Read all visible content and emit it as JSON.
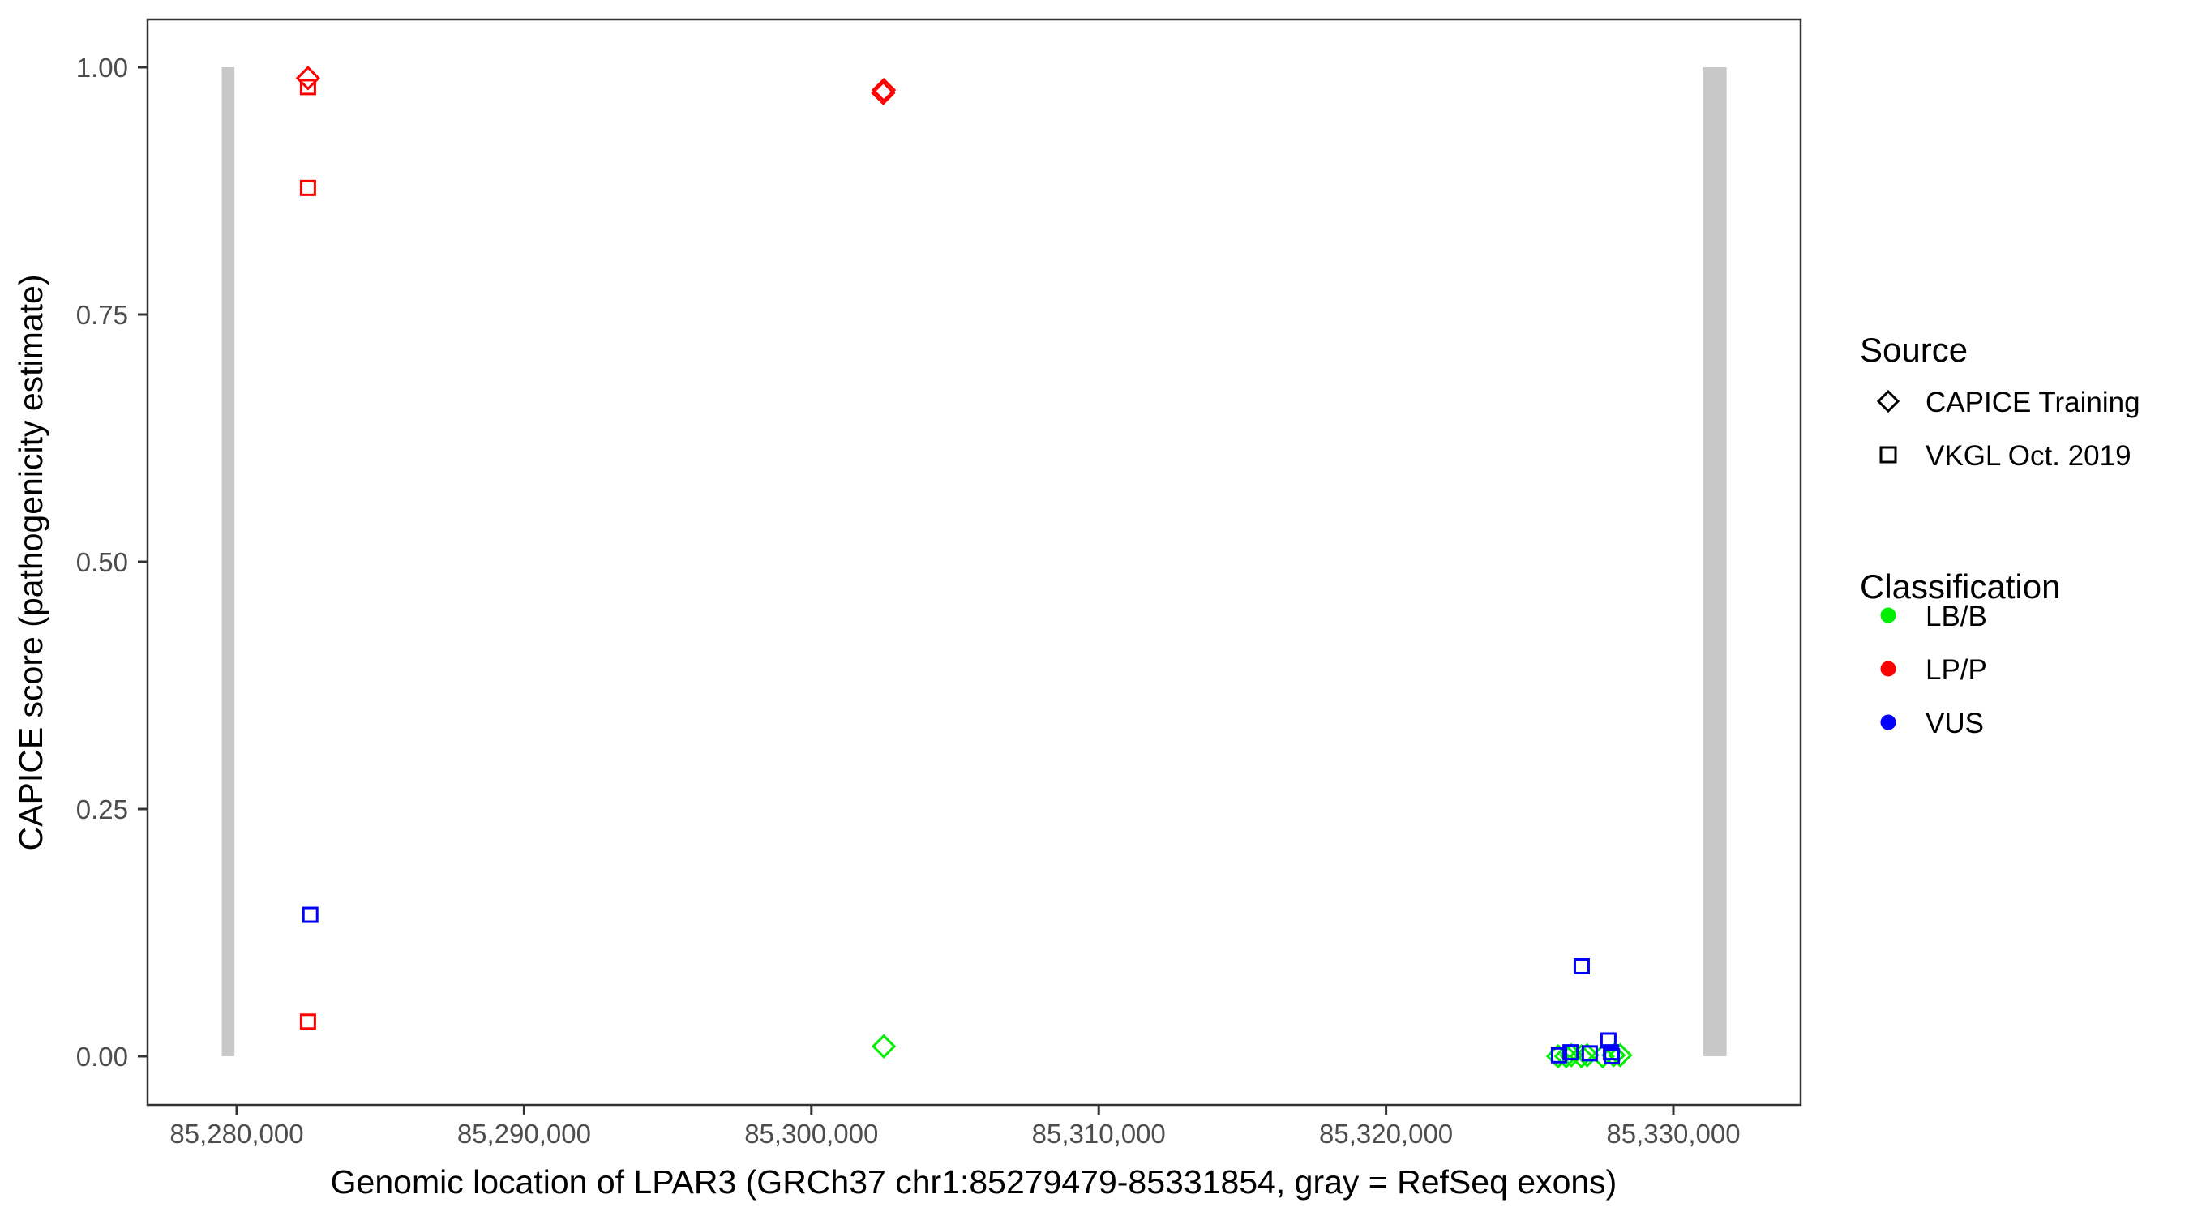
{
  "chart_data": {
    "type": "scatter",
    "title": "",
    "xlabel": "Genomic location of LPAR3 (GRCh37 chr1:85279479-85331854, gray = RefSeq exons)",
    "ylabel": "CAPICE score (pathogenicity estimate)",
    "xlim": [
      85276900,
      85332600
    ],
    "ylim": [
      -0.05,
      1.05
    ],
    "x_ticks": [
      85280000,
      85290000,
      85300000,
      85310000,
      85320000,
      85330000
    ],
    "x_tick_labels": [
      "85,280,000",
      "85,290,000",
      "85,300,000",
      "85,310,000",
      "85,320,000",
      "85,330,000"
    ],
    "y_ticks": [
      0,
      0.25,
      0.5,
      0.75,
      1.0
    ],
    "y_tick_labels": [
      "0.00",
      "0.25",
      "0.50",
      "0.75",
      "1.00"
    ],
    "grid": false,
    "legend_placement": "right",
    "exons": [
      {
        "start": 85279479,
        "end": 85279920
      },
      {
        "start": 85331020,
        "end": 85331854
      }
    ],
    "exon_color": "#c8c8c8",
    "legends": [
      {
        "title": "Source",
        "items": [
          {
            "label": "CAPICE Training",
            "shape": "diamond"
          },
          {
            "label": "VKGL Oct. 2019",
            "shape": "square"
          }
        ]
      },
      {
        "title": "Classification",
        "items": [
          {
            "label": "LB/B",
            "color": "#00ee00"
          },
          {
            "label": "LP/P",
            "color": "#ff0000"
          },
          {
            "label": "VUS",
            "color": "#0000ff"
          }
        ]
      }
    ],
    "points": [
      {
        "x": 85282480,
        "y": 0.989,
        "source": "CAPICE Training",
        "classification": "LP/P"
      },
      {
        "x": 85282480,
        "y": 0.98,
        "source": "VKGL Oct. 2019",
        "classification": "LP/P"
      },
      {
        "x": 85282480,
        "y": 0.878,
        "source": "VKGL Oct. 2019",
        "classification": "LP/P"
      },
      {
        "x": 85282560,
        "y": 0.143,
        "source": "VKGL Oct. 2019",
        "classification": "VUS"
      },
      {
        "x": 85282480,
        "y": 0.035,
        "source": "VKGL Oct. 2019",
        "classification": "LP/P"
      },
      {
        "x": 85302520,
        "y": 0.977,
        "source": "CAPICE Training",
        "classification": "LP/P"
      },
      {
        "x": 85302500,
        "y": 0.974,
        "source": "CAPICE Training",
        "classification": "LP/P"
      },
      {
        "x": 85302520,
        "y": 0.01,
        "source": "CAPICE Training",
        "classification": "LB/B"
      },
      {
        "x": 85326810,
        "y": 0.091,
        "source": "VKGL Oct. 2019",
        "classification": "VUS"
      },
      {
        "x": 85325990,
        "y": 0.0,
        "source": "CAPICE Training",
        "classification": "LB/B"
      },
      {
        "x": 85326270,
        "y": 0.0,
        "source": "CAPICE Training",
        "classification": "LB/B"
      },
      {
        "x": 85326450,
        "y": 0.001,
        "source": "CAPICE Training",
        "classification": "LB/B"
      },
      {
        "x": 85326800,
        "y": 0.0,
        "source": "CAPICE Training",
        "classification": "LB/B"
      },
      {
        "x": 85327000,
        "y": 0.001,
        "source": "CAPICE Training",
        "classification": "LB/B"
      },
      {
        "x": 85327540,
        "y": 0.0,
        "source": "CAPICE Training",
        "classification": "LB/B"
      },
      {
        "x": 85327920,
        "y": 0.001,
        "source": "CAPICE Training",
        "classification": "LB/B"
      },
      {
        "x": 85328150,
        "y": 0.001,
        "source": "CAPICE Training",
        "classification": "LB/B"
      },
      {
        "x": 85326020,
        "y": 0.001,
        "source": "VKGL Oct. 2019",
        "classification": "VUS"
      },
      {
        "x": 85326420,
        "y": 0.004,
        "source": "VKGL Oct. 2019",
        "classification": "VUS"
      },
      {
        "x": 85327090,
        "y": 0.003,
        "source": "VKGL Oct. 2019",
        "classification": "VUS"
      },
      {
        "x": 85327740,
        "y": 0.016,
        "source": "VKGL Oct. 2019",
        "classification": "VUS"
      },
      {
        "x": 85327830,
        "y": 0.004,
        "source": "VKGL Oct. 2019",
        "classification": "VUS"
      },
      {
        "x": 85327860,
        "y": 0.0,
        "source": "VKGL Oct. 2019",
        "classification": "VUS"
      }
    ]
  }
}
